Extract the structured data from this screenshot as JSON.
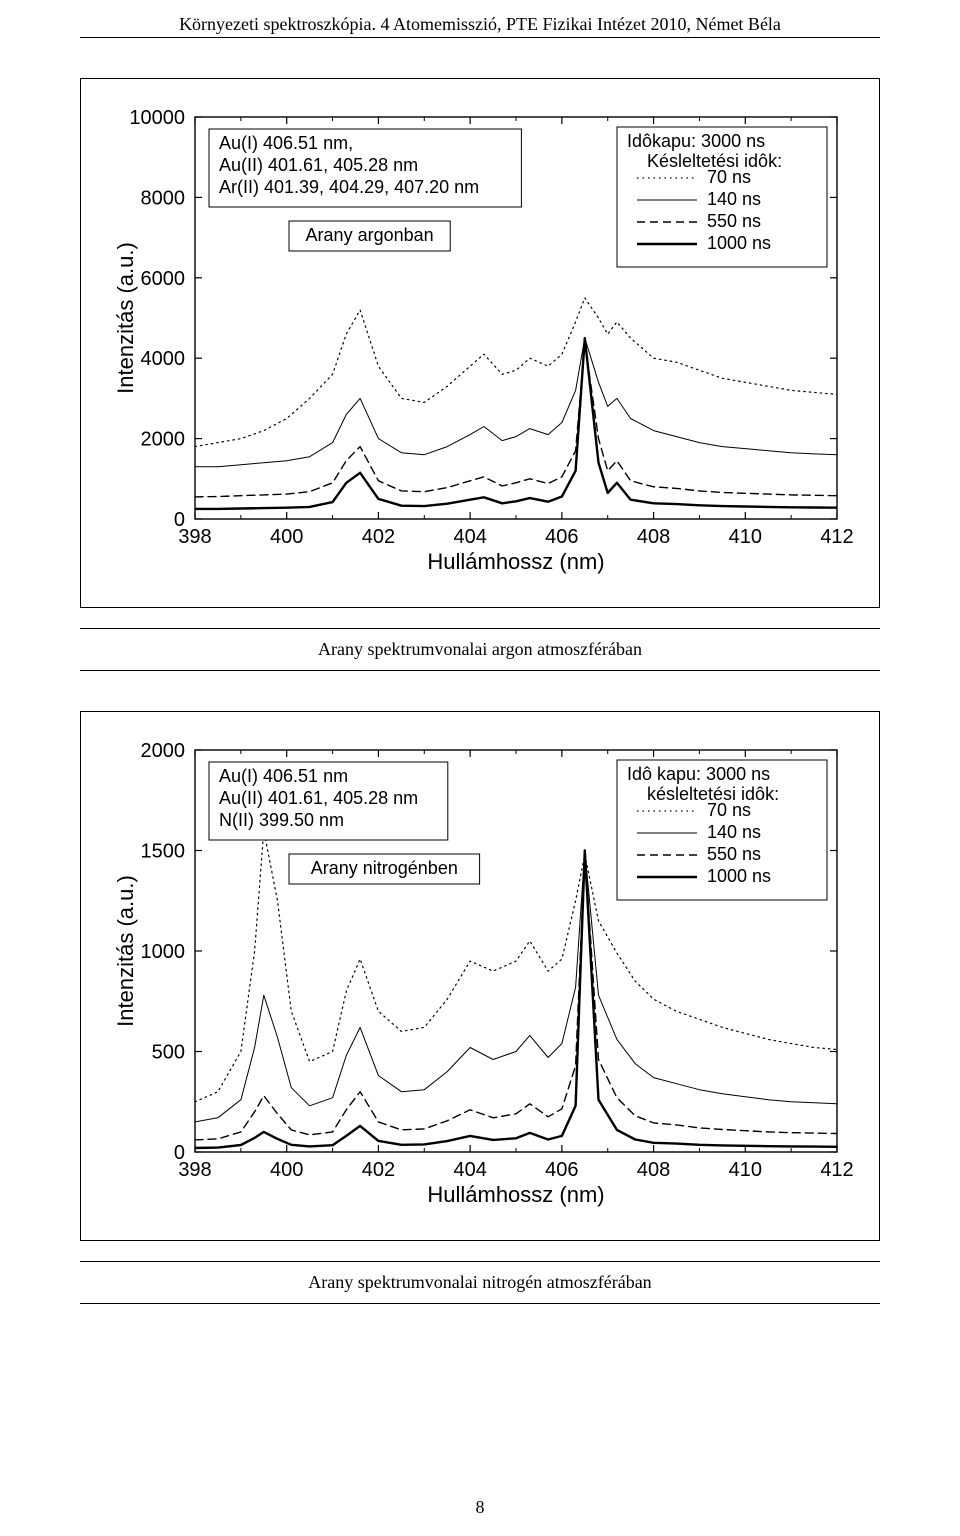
{
  "header": {
    "text": "Környezeti spektroszkópia. 4 Atomemisszió, PTE Fizikai Intézet 2010, Német Béla"
  },
  "page_number": "8",
  "chart1": {
    "type": "line-spectrum",
    "xlabel": "Hullámhossz (nm)",
    "ylabel": "Intenzitás (a.u.)",
    "xlim": [
      398,
      412
    ],
    "ylim": [
      0,
      10000
    ],
    "xticks": [
      398,
      400,
      402,
      404,
      406,
      408,
      410,
      412
    ],
    "yticks": [
      0,
      2000,
      4000,
      6000,
      8000,
      10000
    ],
    "background_color": "#ffffff",
    "axis_color": "#000000",
    "line_box": {
      "lines": [
        "Au(I) 406.51 nm,",
        "Au(II) 401.61, 405.28 nm",
        "Ar(II) 401.39, 404.29, 407.20 nm"
      ]
    },
    "sample_box": {
      "text": "Arany argonban"
    },
    "legend": {
      "title": "Idôkapu: 3000 ns",
      "subtitle": "Késleltetési idôk:",
      "items": [
        {
          "label": "70 ns",
          "dash": "1.5,4",
          "width": 1.2
        },
        {
          "label": "140 ns",
          "dash": "",
          "width": 1.0
        },
        {
          "label": "550 ns",
          "dash": "8,5",
          "width": 1.4
        },
        {
          "label": "1000 ns",
          "dash": "",
          "width": 2.4
        }
      ]
    },
    "series": [
      {
        "name": "70 ns",
        "dash": "1.5,4",
        "width": 1.2,
        "color": "#000000",
        "x": [
          398.0,
          398.5,
          399.0,
          399.5,
          400.0,
          400.5,
          401.0,
          401.3,
          401.6,
          402.0,
          402.5,
          403.0,
          403.5,
          404.0,
          404.3,
          404.7,
          405.0,
          405.3,
          405.7,
          406.0,
          406.3,
          406.5,
          406.8,
          407.0,
          407.2,
          407.5,
          408.0,
          408.5,
          409.0,
          409.5,
          410.0,
          410.5,
          411.0,
          411.5,
          412.0
        ],
        "y": [
          1800,
          1900,
          2000,
          2200,
          2500,
          3000,
          3600,
          4600,
          5200,
          3800,
          3000,
          2900,
          3300,
          3800,
          4100,
          3600,
          3700,
          4000,
          3800,
          4100,
          4900,
          5500,
          5000,
          4600,
          4900,
          4500,
          4000,
          3900,
          3700,
          3500,
          3400,
          3300,
          3200,
          3150,
          3100
        ]
      },
      {
        "name": "140 ns",
        "dash": "",
        "width": 1.0,
        "color": "#000000",
        "x": [
          398.0,
          398.5,
          399.0,
          399.5,
          400.0,
          400.5,
          401.0,
          401.3,
          401.6,
          402.0,
          402.5,
          403.0,
          403.5,
          404.0,
          404.3,
          404.7,
          405.0,
          405.3,
          405.7,
          406.0,
          406.3,
          406.5,
          406.8,
          407.0,
          407.2,
          407.5,
          408.0,
          408.5,
          409.0,
          409.5,
          410.0,
          410.5,
          411.0,
          411.5,
          412.0
        ],
        "y": [
          1300,
          1300,
          1350,
          1400,
          1450,
          1550,
          1900,
          2600,
          3000,
          2000,
          1650,
          1600,
          1800,
          2100,
          2300,
          1950,
          2050,
          2250,
          2100,
          2400,
          3200,
          4500,
          3400,
          2800,
          3000,
          2500,
          2200,
          2050,
          1900,
          1800,
          1750,
          1700,
          1650,
          1620,
          1600
        ]
      },
      {
        "name": "550 ns",
        "dash": "8,5",
        "width": 1.4,
        "color": "#000000",
        "x": [
          398.0,
          398.5,
          399.0,
          399.5,
          400.0,
          400.5,
          401.0,
          401.3,
          401.6,
          402.0,
          402.5,
          403.0,
          403.5,
          404.0,
          404.3,
          404.7,
          405.0,
          405.3,
          405.7,
          406.0,
          406.3,
          406.5,
          406.8,
          407.0,
          407.2,
          407.5,
          408.0,
          408.5,
          409.0,
          409.5,
          410.0,
          410.5,
          411.0,
          411.5,
          412.0
        ],
        "y": [
          550,
          560,
          580,
          600,
          620,
          680,
          900,
          1450,
          1800,
          950,
          700,
          680,
          780,
          950,
          1050,
          820,
          900,
          1000,
          880,
          1050,
          1700,
          4400,
          2000,
          1200,
          1450,
          950,
          800,
          760,
          700,
          660,
          640,
          620,
          600,
          590,
          580
        ]
      },
      {
        "name": "1000 ns",
        "dash": "",
        "width": 2.4,
        "color": "#000000",
        "x": [
          398.0,
          398.5,
          399.0,
          399.5,
          400.0,
          400.5,
          401.0,
          401.3,
          401.6,
          402.0,
          402.5,
          403.0,
          403.5,
          404.0,
          404.3,
          404.7,
          405.0,
          405.3,
          405.7,
          406.0,
          406.3,
          406.5,
          406.8,
          407.0,
          407.2,
          407.5,
          408.0,
          408.5,
          409.0,
          409.5,
          410.0,
          410.5,
          411.0,
          411.5,
          412.0
        ],
        "y": [
          250,
          250,
          260,
          270,
          280,
          300,
          420,
          900,
          1150,
          500,
          330,
          320,
          380,
          480,
          540,
          390,
          440,
          520,
          430,
          560,
          1200,
          4500,
          1400,
          650,
          900,
          480,
          390,
          370,
          340,
          320,
          310,
          300,
          290,
          285,
          280
        ]
      }
    ]
  },
  "caption1": "Arany spektrumvonalai argon atmoszférában",
  "chart2": {
    "type": "line-spectrum",
    "xlabel": "Hullámhossz (nm)",
    "ylabel": "Intenzitás (a.u.)",
    "xlim": [
      398,
      412
    ],
    "ylim": [
      0,
      2000
    ],
    "xticks": [
      398,
      400,
      402,
      404,
      406,
      408,
      410,
      412
    ],
    "yticks": [
      0,
      500,
      1000,
      1500,
      2000
    ],
    "background_color": "#ffffff",
    "axis_color": "#000000",
    "line_box": {
      "lines": [
        "Au(I) 406.51 nm",
        "Au(II) 401.61, 405.28 nm",
        "N(II) 399.50 nm"
      ]
    },
    "sample_box": {
      "text": "Arany nitrogénben"
    },
    "legend": {
      "title": "Idô kapu: 3000 ns",
      "subtitle": "késleltetési idôk:",
      "items": [
        {
          "label": "70 ns",
          "dash": "1.5,4",
          "width": 1.2
        },
        {
          "label": "140 ns",
          "dash": "",
          "width": 1.0
        },
        {
          "label": "550 ns",
          "dash": "8,5",
          "width": 1.4
        },
        {
          "label": "1000 ns",
          "dash": "",
          "width": 2.4
        }
      ]
    },
    "series": [
      {
        "name": "70 ns",
        "dash": "1.5,4",
        "width": 1.2,
        "color": "#000000",
        "x": [
          398.0,
          398.5,
          399.0,
          399.3,
          399.5,
          399.8,
          400.1,
          400.5,
          401.0,
          401.3,
          401.6,
          402.0,
          402.5,
          403.0,
          403.5,
          404.0,
          404.5,
          405.0,
          405.3,
          405.7,
          406.0,
          406.3,
          406.5,
          406.8,
          407.2,
          407.6,
          408.0,
          408.5,
          409.0,
          409.5,
          410.0,
          410.5,
          411.0,
          411.5,
          412.0
        ],
        "y": [
          250,
          300,
          500,
          1000,
          1600,
          1250,
          700,
          450,
          500,
          800,
          960,
          700,
          600,
          620,
          760,
          950,
          900,
          950,
          1050,
          900,
          960,
          1250,
          1480,
          1150,
          990,
          850,
          760,
          700,
          660,
          620,
          590,
          560,
          540,
          520,
          510
        ]
      },
      {
        "name": "140 ns",
        "dash": "",
        "width": 1.0,
        "color": "#000000",
        "x": [
          398.0,
          398.5,
          399.0,
          399.3,
          399.5,
          399.8,
          400.1,
          400.5,
          401.0,
          401.3,
          401.6,
          402.0,
          402.5,
          403.0,
          403.5,
          404.0,
          404.5,
          405.0,
          405.3,
          405.7,
          406.0,
          406.3,
          406.5,
          406.8,
          407.2,
          407.6,
          408.0,
          408.5,
          409.0,
          409.5,
          410.0,
          410.5,
          411.0,
          411.5,
          412.0
        ],
        "y": [
          150,
          170,
          260,
          520,
          780,
          570,
          320,
          230,
          270,
          480,
          620,
          380,
          300,
          310,
          400,
          520,
          460,
          500,
          580,
          470,
          540,
          820,
          1500,
          780,
          560,
          440,
          370,
          340,
          310,
          290,
          275,
          260,
          250,
          245,
          240
        ]
      },
      {
        "name": "550 ns",
        "dash": "8,5",
        "width": 1.4,
        "color": "#000000",
        "x": [
          398.0,
          398.5,
          399.0,
          399.3,
          399.5,
          399.8,
          400.1,
          400.5,
          401.0,
          401.3,
          401.6,
          402.0,
          402.5,
          403.0,
          403.5,
          404.0,
          404.5,
          405.0,
          405.3,
          405.7,
          406.0,
          406.3,
          406.5,
          406.8,
          407.2,
          407.6,
          408.0,
          408.5,
          409.0,
          409.5,
          410.0,
          410.5,
          411.0,
          411.5,
          412.0
        ],
        "y": [
          60,
          65,
          100,
          200,
          280,
          190,
          110,
          85,
          100,
          210,
          300,
          150,
          110,
          115,
          155,
          210,
          170,
          190,
          240,
          175,
          215,
          430,
          1500,
          460,
          270,
          180,
          145,
          135,
          120,
          112,
          106,
          100,
          96,
          94,
          92
        ]
      },
      {
        "name": "1000 ns",
        "dash": "",
        "width": 2.4,
        "color": "#000000",
        "x": [
          398.0,
          398.5,
          399.0,
          399.3,
          399.5,
          399.8,
          400.1,
          400.5,
          401.0,
          401.3,
          401.6,
          402.0,
          402.5,
          403.0,
          403.5,
          404.0,
          404.5,
          405.0,
          405.3,
          405.7,
          406.0,
          406.3,
          406.5,
          406.8,
          407.2,
          407.6,
          408.0,
          408.5,
          409.0,
          409.5,
          410.0,
          410.5,
          411.0,
          411.5,
          412.0
        ],
        "y": [
          20,
          22,
          35,
          70,
          100,
          65,
          36,
          28,
          34,
          80,
          130,
          55,
          36,
          38,
          54,
          80,
          60,
          68,
          95,
          62,
          80,
          230,
          1500,
          260,
          110,
          62,
          46,
          42,
          36,
          33,
          31,
          29,
          28,
          27,
          26
        ]
      }
    ]
  },
  "caption2": "Arany spektrumvonalai nitrogén atmoszférában"
}
